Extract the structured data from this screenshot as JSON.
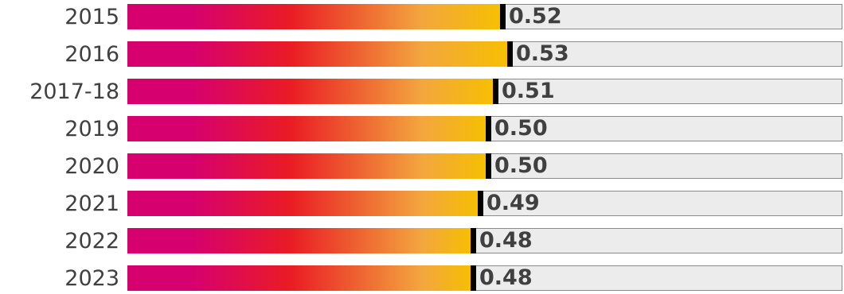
{
  "chart_data": {
    "type": "bar",
    "orientation": "horizontal",
    "categories": [
      "2015",
      "2016",
      "2017-18",
      "2019",
      "2020",
      "2021",
      "2022",
      "2023"
    ],
    "values": [
      0.52,
      0.53,
      0.51,
      0.5,
      0.5,
      0.49,
      0.48,
      0.48
    ],
    "value_labels": [
      "0.52",
      "0.53",
      "0.51",
      "0.50",
      "0.50",
      "0.49",
      "0.48",
      "0.48"
    ],
    "xlim": [
      0,
      1
    ],
    "title": "",
    "xlabel": "",
    "ylabel": "",
    "grid": false,
    "legend": "none"
  },
  "colors": {
    "gradient": [
      "#d6006f",
      "#ea1c24",
      "#f3a63e",
      "#f6c000"
    ],
    "track": "#ececec",
    "marker": "#000000",
    "text": "#404040"
  }
}
